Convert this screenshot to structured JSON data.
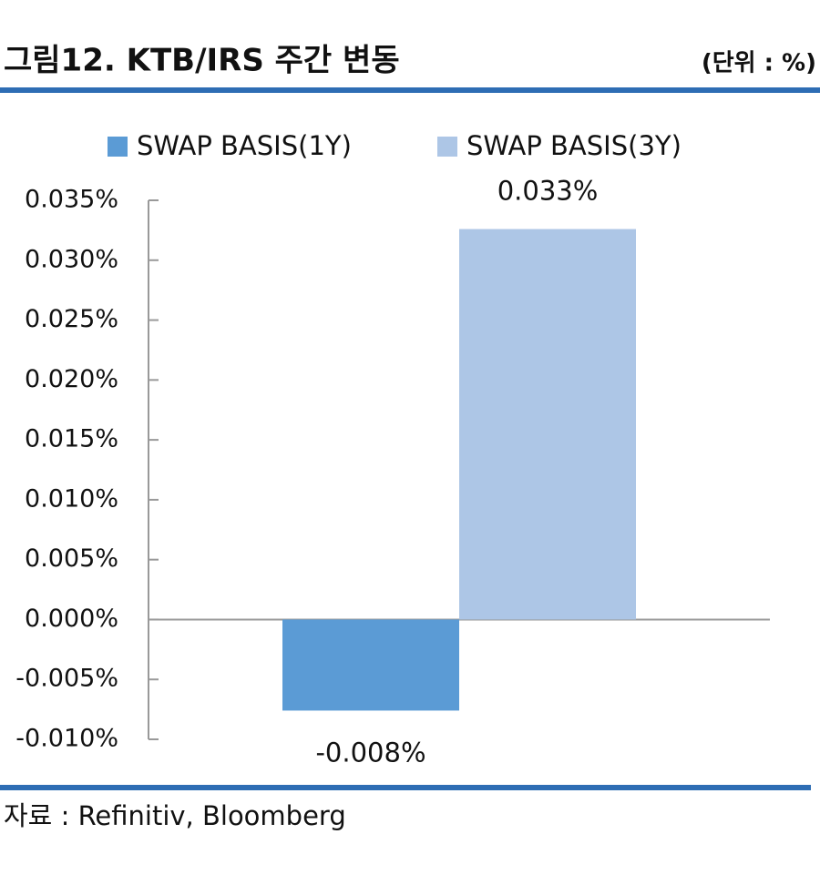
{
  "chart_data": {
    "type": "bar",
    "title": "그림12. KTB/IRS 주간 변동",
    "unit_note": "(단위 : %)",
    "source": "자료 : Refinitiv, Bloomberg",
    "categories": [
      null
    ],
    "series": [
      {
        "name": "SWAP BASIS(1Y)",
        "color": "#5b9bd5",
        "values": [
          -0.0076
        ],
        "value_labels": [
          "-0.008%"
        ]
      },
      {
        "name": "SWAP BASIS(3Y)",
        "color": "#adc6e6",
        "values": [
          0.0326
        ],
        "value_labels": [
          "0.033%"
        ]
      }
    ],
    "ylim": [
      -0.01,
      0.035
    ],
    "yticks": [
      {
        "value": -0.01,
        "label": "-0.010%"
      },
      {
        "value": -0.005,
        "label": "-0.005%"
      },
      {
        "value": 0,
        "label": "0.000%"
      },
      {
        "value": 0.005,
        "label": "0.005%"
      },
      {
        "value": 0.01,
        "label": "0.010%"
      },
      {
        "value": 0.015,
        "label": "0.015%"
      },
      {
        "value": 0.02,
        "label": "0.020%"
      },
      {
        "value": 0.025,
        "label": "0.025%"
      },
      {
        "value": 0.03,
        "label": "0.030%"
      },
      {
        "value": 0.035,
        "label": "0.035%"
      }
    ],
    "legend": "top"
  }
}
